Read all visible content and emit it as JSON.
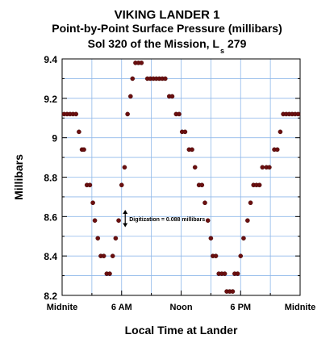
{
  "titles": {
    "line1": "VIKING LANDER 1",
    "line2": "Point-by-Point Surface Pressure (millibars)",
    "line3_main": "Sol 320 of the Mission, L",
    "line3_sub": "s",
    "line3_end": "279"
  },
  "chart_data": {
    "type": "scatter",
    "xlabel": "Local Time at Lander",
    "ylabel": "Millibars",
    "xlim": [
      0,
      24
    ],
    "ylim": [
      8.2,
      9.4
    ],
    "yticks": [
      8.2,
      8.4,
      8.6,
      8.8,
      9,
      9.2,
      9.4
    ],
    "ytick_labels": [
      "8.2",
      "8.4",
      "8.6",
      "8.8",
      "9",
      "9.2",
      "9.4"
    ],
    "xticks": [
      0,
      6,
      12,
      18,
      24
    ],
    "xtick_labels": [
      "Midnite",
      "6 AM",
      "Noon",
      "6 PM",
      "Midnite"
    ],
    "grid": true,
    "marker_color": "#6b0f0f",
    "grid_color": "#8fb8ea",
    "annotation": {
      "text": "Digitization = 0.088 millibars",
      "x": 6.2,
      "y_low": 8.55,
      "y_high": 8.63
    },
    "series": [
      {
        "points": [
          [
            0.2,
            9.12
          ],
          [
            0.5,
            9.12
          ],
          [
            0.8,
            9.12
          ],
          [
            1.1,
            9.12
          ],
          [
            1.4,
            9.12
          ],
          [
            1.7,
            9.03
          ],
          [
            2.0,
            8.94
          ],
          [
            2.2,
            8.94
          ],
          [
            2.5,
            8.76
          ],
          [
            2.8,
            8.76
          ],
          [
            3.1,
            8.67
          ],
          [
            3.3,
            8.58
          ],
          [
            3.6,
            8.49
          ],
          [
            3.9,
            8.4
          ],
          [
            4.2,
            8.4
          ],
          [
            4.5,
            8.31
          ],
          [
            4.8,
            8.31
          ],
          [
            5.1,
            8.4
          ],
          [
            5.4,
            8.49
          ],
          [
            5.7,
            8.58
          ],
          [
            6.0,
            8.76
          ],
          [
            6.3,
            8.85
          ],
          [
            6.6,
            9.12
          ],
          [
            6.9,
            9.21
          ],
          [
            7.1,
            9.3
          ],
          [
            7.4,
            9.38
          ],
          [
            7.7,
            9.38
          ],
          [
            8.0,
            9.38
          ],
          [
            8.6,
            9.3
          ],
          [
            8.9,
            9.3
          ],
          [
            9.2,
            9.3
          ],
          [
            9.5,
            9.3
          ],
          [
            9.8,
            9.3
          ],
          [
            10.1,
            9.3
          ],
          [
            10.4,
            9.3
          ],
          [
            10.8,
            9.21
          ],
          [
            11.1,
            9.21
          ],
          [
            11.5,
            9.12
          ],
          [
            11.8,
            9.12
          ],
          [
            12.1,
            9.03
          ],
          [
            12.4,
            9.03
          ],
          [
            12.8,
            8.94
          ],
          [
            13.1,
            8.94
          ],
          [
            13.4,
            8.85
          ],
          [
            13.8,
            8.76
          ],
          [
            14.1,
            8.76
          ],
          [
            14.4,
            8.67
          ],
          [
            14.7,
            8.58
          ],
          [
            15.0,
            8.49
          ],
          [
            15.2,
            8.4
          ],
          [
            15.5,
            8.4
          ],
          [
            15.8,
            8.31
          ],
          [
            16.1,
            8.31
          ],
          [
            16.4,
            8.31
          ],
          [
            16.6,
            8.22
          ],
          [
            16.9,
            8.22
          ],
          [
            17.2,
            8.22
          ],
          [
            17.4,
            8.31
          ],
          [
            17.7,
            8.31
          ],
          [
            18.0,
            8.4
          ],
          [
            18.3,
            8.49
          ],
          [
            18.7,
            8.58
          ],
          [
            19.0,
            8.67
          ],
          [
            19.3,
            8.76
          ],
          [
            19.6,
            8.76
          ],
          [
            19.9,
            8.76
          ],
          [
            20.2,
            8.85
          ],
          [
            20.6,
            8.85
          ],
          [
            20.9,
            8.85
          ],
          [
            21.4,
            8.94
          ],
          [
            21.7,
            8.94
          ],
          [
            22.0,
            9.03
          ],
          [
            22.3,
            9.12
          ],
          [
            22.6,
            9.12
          ],
          [
            22.9,
            9.12
          ],
          [
            23.2,
            9.12
          ],
          [
            23.5,
            9.12
          ],
          [
            23.8,
            9.12
          ]
        ]
      }
    ]
  }
}
